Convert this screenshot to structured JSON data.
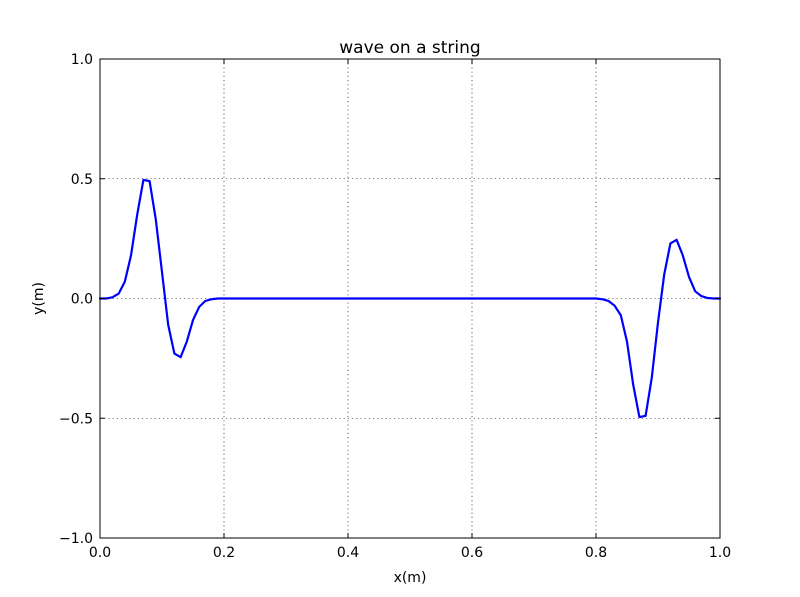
{
  "chart_data": {
    "type": "line",
    "title": "wave on a string",
    "xlabel": "x(m)",
    "ylabel": "y(m)",
    "xlim": [
      0.0,
      1.0
    ],
    "ylim": [
      -1.0,
      1.0
    ],
    "xticks": [
      0.0,
      0.2,
      0.4,
      0.6,
      0.8,
      1.0
    ],
    "yticks": [
      -1.0,
      -0.5,
      0.0,
      0.5,
      1.0
    ],
    "xtick_labels": [
      "0.0",
      "0.2",
      "0.4",
      "0.6",
      "0.8",
      "1.0"
    ],
    "ytick_labels": [
      "−1.0",
      "−0.5",
      "0.0",
      "0.5",
      "1.0"
    ],
    "grid": true,
    "series": [
      {
        "color": "#0000ff",
        "x": [
          0.0,
          0.01,
          0.02,
          0.03,
          0.04,
          0.05,
          0.06,
          0.07,
          0.08,
          0.09,
          0.1,
          0.11,
          0.12,
          0.13,
          0.14,
          0.15,
          0.16,
          0.17,
          0.18,
          0.19,
          0.2,
          0.3,
          0.4,
          0.5,
          0.6,
          0.7,
          0.8,
          0.81,
          0.82,
          0.83,
          0.84,
          0.85,
          0.86,
          0.87,
          0.88,
          0.89,
          0.9,
          0.91,
          0.92,
          0.93,
          0.94,
          0.95,
          0.96,
          0.97,
          0.98,
          0.99,
          1.0
        ],
        "y": [
          0.0,
          0.0,
          0.005,
          0.02,
          0.07,
          0.18,
          0.35,
          0.495,
          0.49,
          0.33,
          0.11,
          -0.11,
          -0.23,
          -0.245,
          -0.18,
          -0.09,
          -0.035,
          -0.01,
          -0.003,
          0.0,
          0.0,
          0.0,
          0.0,
          0.0,
          0.0,
          0.0,
          0.0,
          -0.003,
          -0.01,
          -0.03,
          -0.07,
          -0.18,
          -0.36,
          -0.495,
          -0.49,
          -0.33,
          -0.1,
          0.1,
          0.23,
          0.245,
          0.18,
          0.09,
          0.03,
          0.01,
          0.002,
          0.0,
          0.0
        ]
      }
    ]
  }
}
